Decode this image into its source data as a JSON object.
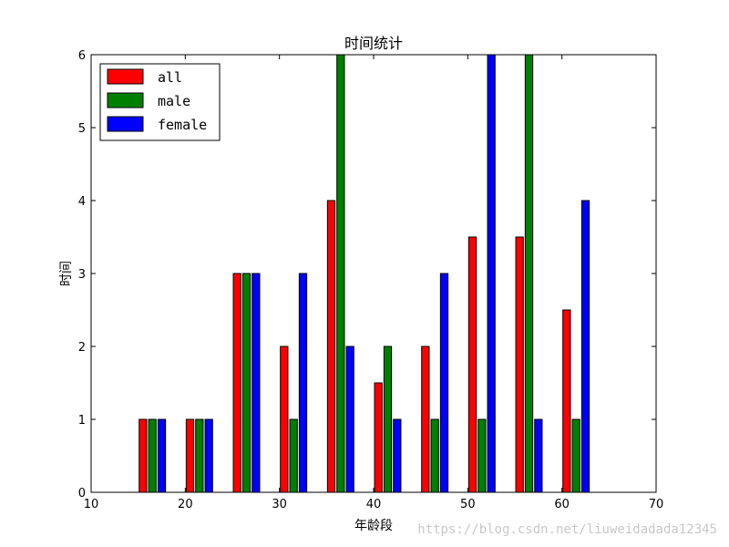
{
  "chart_data": {
    "type": "bar",
    "title": "时间统计",
    "xlabel": "年龄段",
    "ylabel": "时间",
    "xlim": [
      10,
      70
    ],
    "ylim": [
      0,
      6
    ],
    "xticks": [
      10,
      20,
      30,
      40,
      50,
      60,
      70
    ],
    "yticks": [
      0,
      1,
      2,
      3,
      4,
      5,
      6
    ],
    "x": [
      15,
      20,
      25,
      30,
      35,
      40,
      45,
      50,
      55,
      60
    ],
    "bar_width": 0.8,
    "series": [
      {
        "name": "all",
        "color": "#ff0000",
        "offset": 0.5,
        "values": [
          1,
          1,
          3,
          2,
          4,
          1.5,
          2,
          3.5,
          3.5,
          2.5
        ]
      },
      {
        "name": "male",
        "color": "#008000",
        "offset": 1.5,
        "values": [
          1,
          1,
          3,
          1,
          6,
          2,
          1,
          1,
          6,
          1
        ]
      },
      {
        "name": "female",
        "color": "#0000ff",
        "offset": 2.5,
        "values": [
          1,
          1,
          3,
          3,
          2,
          1,
          3,
          6,
          1,
          4
        ]
      }
    ],
    "legend_position": "top-left",
    "grid": false
  },
  "watermark": "https://blog.csdn.net/liuweidadada12345"
}
